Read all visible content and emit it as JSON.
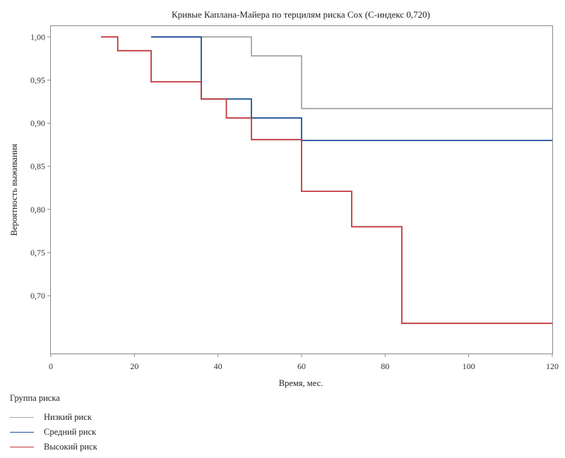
{
  "chart_data": {
    "type": "line",
    "step": true,
    "title": "Кривые Каплана-Майера по терцилям риска Cox (C-индекс 0,720)",
    "xlabel": "Время, мес.",
    "ylabel": "Вероятность выживания",
    "xlim": [
      0,
      120
    ],
    "ylim": [
      0.633,
      1.0125
    ],
    "xticks": [
      0,
      20,
      40,
      60,
      80,
      100,
      120
    ],
    "xtick_labels": [
      "0",
      "20",
      "40",
      "60",
      "80",
      "100",
      "120"
    ],
    "yticks": [
      1.0,
      0.95,
      0.9,
      0.85,
      0.8,
      0.75,
      0.7
    ],
    "ytick_labels": [
      "1,00",
      "0,95",
      "0,90",
      "0,85",
      "0,80",
      "0,75",
      "0,70"
    ],
    "grid": false,
    "legend_title": "Группа риска",
    "legend_position": "below",
    "series": [
      {
        "name": "Низкий риск",
        "color": "#a6a6a6",
        "x": [
          24,
          48,
          48,
          60,
          60,
          120
        ],
        "y": [
          1.0,
          1.0,
          0.978,
          0.978,
          0.917,
          0.917
        ]
      },
      {
        "name": "Средний риск",
        "color": "#1f4f9a",
        "x": [
          24,
          36,
          36,
          48,
          48,
          60,
          60,
          120
        ],
        "y": [
          1.0,
          1.0,
          0.928,
          0.928,
          0.906,
          0.906,
          0.88,
          0.88
        ]
      },
      {
        "name": "Высокий риск",
        "color": "#c0393b",
        "x": [
          12,
          16,
          16,
          24,
          24,
          36,
          36,
          42,
          42,
          48,
          48,
          60,
          60,
          72,
          72,
          84,
          84,
          120
        ],
        "y": [
          1.0,
          1.0,
          0.984,
          0.984,
          0.948,
          0.948,
          0.928,
          0.928,
          0.906,
          0.906,
          0.881,
          0.881,
          0.821,
          0.821,
          0.78,
          0.78,
          0.668,
          0.668
        ]
      }
    ]
  }
}
